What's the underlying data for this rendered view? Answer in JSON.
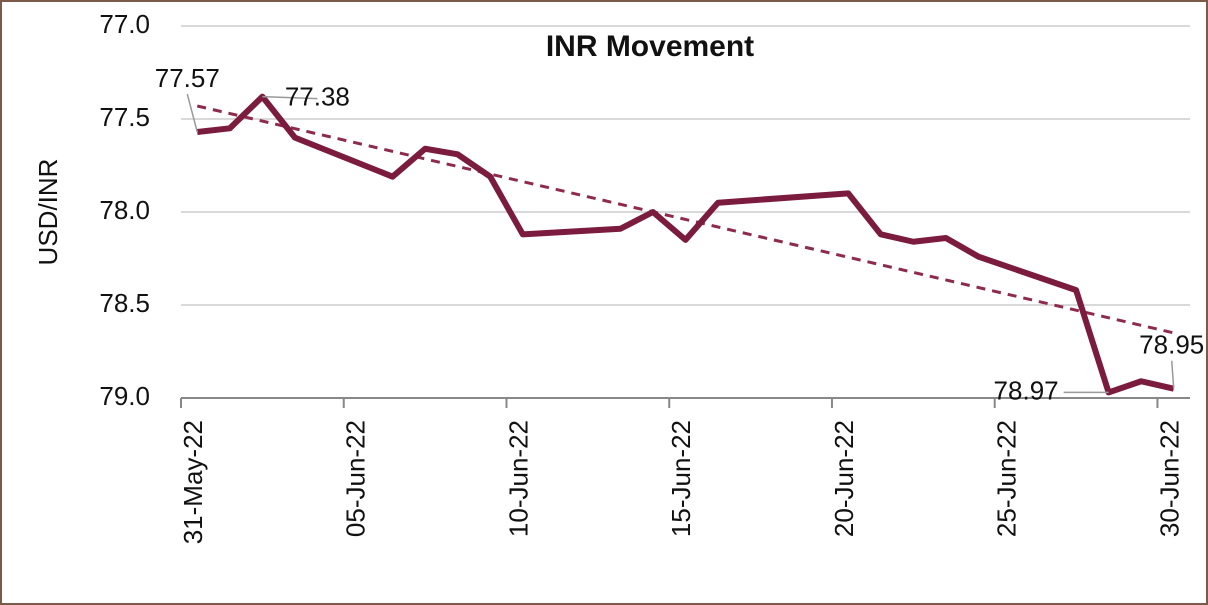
{
  "chart_data": {
    "type": "line",
    "title": "INR Movement",
    "y_label": "USD/INR",
    "x": [
      "31-May-22",
      "01-Jun-22",
      "02-Jun-22",
      "03-Jun-22",
      "06-Jun-22",
      "07-Jun-22",
      "08-Jun-22",
      "09-Jun-22",
      "10-Jun-22",
      "13-Jun-22",
      "14-Jun-22",
      "15-Jun-22",
      "16-Jun-22",
      "20-Jun-22",
      "21-Jun-22",
      "22-Jun-22",
      "23-Jun-22",
      "24-Jun-22",
      "27-Jun-22",
      "28-Jun-22",
      "29-Jun-22",
      "30-Jun-22"
    ],
    "series": [
      {
        "color": "#7b1c3e",
        "values": [
          77.57,
          77.55,
          77.38,
          77.6,
          77.81,
          77.66,
          77.69,
          77.81,
          78.12,
          78.09,
          78.0,
          78.15,
          77.95,
          77.9,
          78.12,
          78.16,
          78.14,
          78.24,
          78.42,
          78.97,
          78.91,
          78.95
        ],
        "value_labels": [
          "77.57",
          null,
          "77.38",
          null,
          null,
          null,
          null,
          null,
          null,
          null,
          null,
          null,
          null,
          null,
          null,
          null,
          null,
          null,
          null,
          "78.97",
          null,
          "78.95"
        ]
      }
    ],
    "trendline": {
      "values": [
        77.43,
        78.65
      ],
      "color": "#8e2a4c",
      "dashed": true
    },
    "xlim": [
      "31-May-22",
      "30-Jun-22"
    ],
    "xticks": [
      "31-May-22",
      "05-Jun-22",
      "10-Jun-22",
      "15-Jun-22",
      "20-Jun-22",
      "25-Jun-22",
      "30-Jun-22"
    ],
    "ylim": [
      77.0,
      79.0
    ],
    "y_inverted": true,
    "yticks": [
      {
        "value": 77.0,
        "label": "77.0"
      },
      77.5,
      {
        "value": 78.0,
        "label": "78.0"
      },
      78.5,
      {
        "value": 79.0,
        "label": "79.0"
      }
    ],
    "grid": true
  }
}
